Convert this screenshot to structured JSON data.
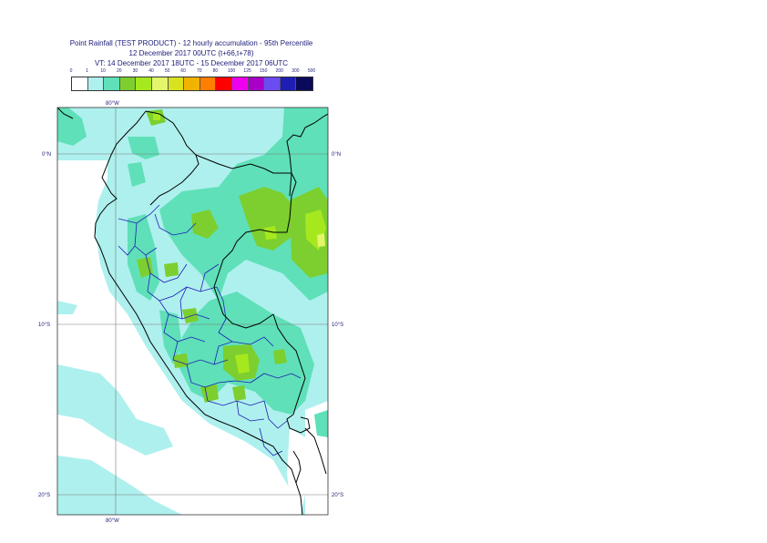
{
  "title": {
    "line1": "Point Rainfall (TEST PRODUCT) - 12 hourly accumulation - 95th Percentile",
    "line2": "12 December 2017 00UTC (t+66,t+78)",
    "line3": "VT: 14 December 2017 18UTC - 15 December 2017 06UTC"
  },
  "legend": {
    "labels": [
      "0",
      "1",
      "10",
      "20",
      "30",
      "40",
      "50",
      "60",
      "70",
      "80",
      "100",
      "125",
      "150",
      "200",
      "300",
      "500"
    ],
    "colors": [
      "#ffffff",
      "#aef0ee",
      "#5fe0b8",
      "#7ccf2e",
      "#a6e81e",
      "#e3f56a",
      "#d9e21f",
      "#f0b400",
      "#ff7f00",
      "#ff0000",
      "#ee00ee",
      "#a800c8",
      "#6a4cf0",
      "#1e1eb4",
      "#0a0a5a"
    ]
  },
  "map": {
    "lat_labels_left": [
      "0°N",
      "10°S",
      "20°S"
    ],
    "lat_labels_right": [
      "0°N",
      "10°S",
      "20°S"
    ],
    "lon_label_top": "80°W",
    "lon_label_bottom": "80°W",
    "colors": {
      "ocean_base": "#aef0ee",
      "land_base": "#aef0ee",
      "light": "#5fe0b8",
      "medium": "#7ccf2e",
      "high": "#a6e81e",
      "very_high": "#e3f56a",
      "coast": "#000000",
      "regions": "#1e1eb4",
      "grid": "#7a7a7a"
    }
  }
}
